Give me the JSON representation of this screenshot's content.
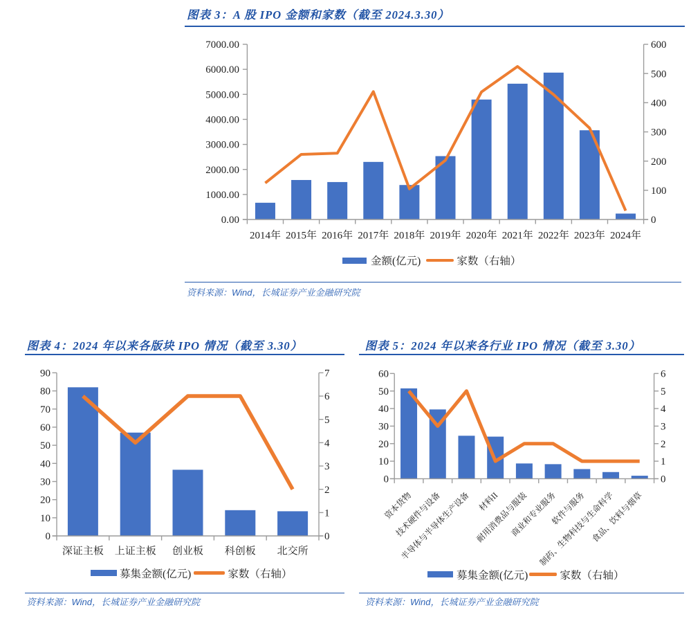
{
  "page": {
    "type": "research-report-figures",
    "background": "#ffffff"
  },
  "colors": {
    "bar_blue": "#4472C4",
    "line_orange": "#ED7D31",
    "title_blue": "#1C4FA3",
    "rule_blue": "#2458AC",
    "source_blue": "#2E63B5",
    "axis_gray": "#9C9C9C",
    "tick_label_dark": "#1F1F1F"
  },
  "figures": [
    {
      "id": "figure-3",
      "title": "图表 3：A 股 IPO 金额和家数（截至 2024.3.30）",
      "source": "资料来源：Wind，长城证券产业金融研究院",
      "legend": {
        "bar": "金额(亿元)",
        "line": "家数（右轴）"
      },
      "chart_data": {
        "type": "bar+line",
        "categories": [
          "2014年",
          "2015年",
          "2016年",
          "2017年",
          "2018年",
          "2019年",
          "2020年",
          "2021年",
          "2022年",
          "2023年",
          "2024年"
        ],
        "series": [
          {
            "name": "金额(亿元)",
            "type": "bar",
            "axis": "left",
            "values": [
              669,
              1578,
              1496,
              2301,
              1378,
              2532,
              4793,
              5426,
              5869,
              3565,
              236
            ]
          },
          {
            "name": "家数（右轴）",
            "type": "line",
            "axis": "right",
            "values": [
              125,
              223,
              227,
              438,
              105,
              203,
              437,
              524,
              428,
              313,
              30
            ]
          }
        ],
        "ylim_left": [
          0,
          7000
        ],
        "ylim_right": [
          0,
          600
        ],
        "yticks_left": [
          "7000.00",
          "6000.00",
          "5000.00",
          "4000.00",
          "3000.00",
          "2000.00",
          "1000.00",
          "0.00"
        ],
        "yticks_right": [
          "600",
          "500",
          "400",
          "300",
          "200",
          "100",
          "0"
        ],
        "grid": false,
        "legend_position": "bottom"
      }
    },
    {
      "id": "figure-4",
      "title": "图表 4：2024 年以来各版块 IPO 情况（截至 3.30）",
      "source": "资料来源：Wind，长城证券产业金融研究院",
      "legend": {
        "bar": "募集金额(亿元)",
        "line": "家数（右轴）"
      },
      "chart_data": {
        "type": "bar+line",
        "categories": [
          "深证主板",
          "上证主板",
          "创业板",
          "科创板",
          "北交所"
        ],
        "series": [
          {
            "name": "募集金额(亿元)",
            "type": "bar",
            "axis": "left",
            "values": [
              82,
              57,
              36.5,
              14.2,
              13.6
            ]
          },
          {
            "name": "家数（右轴）",
            "type": "line",
            "axis": "right",
            "values": [
              6,
              4,
              6,
              6,
              2
            ]
          }
        ],
        "ylim_left": [
          0,
          90
        ],
        "ylim_right": [
          0,
          7
        ],
        "yticks_left": [
          "90",
          "80",
          "70",
          "60",
          "50",
          "40",
          "30",
          "20",
          "10",
          "0"
        ],
        "yticks_right": [
          "7",
          "6",
          "5",
          "4",
          "3",
          "2",
          "1",
          "0"
        ],
        "grid": false,
        "legend_position": "bottom"
      }
    },
    {
      "id": "figure-5",
      "title": "图表 5：2024 年以来各行业 IPO 情况（截至 3.30）",
      "source": "资料来源：Wind，长城证券产业金融研究院",
      "legend": {
        "bar": "募集金额(亿元)",
        "line": "家数（右轴）"
      },
      "chart_data": {
        "type": "bar+line",
        "categories": [
          "资本货物",
          "技术硬件与设备",
          "半导体与半导体生产设备",
          "材料II",
          "耐用消费品与服装",
          "商业和专业服务",
          "软件与服务",
          "制药、生物科技与生命科学",
          "食品、饮料与烟草"
        ],
        "series": [
          {
            "name": "募集金额(亿元)",
            "type": "bar",
            "axis": "left",
            "values": [
              51.5,
              39.5,
              24.5,
              24,
              8.7,
              8.3,
              5.5,
              3.8,
              1.7
            ]
          },
          {
            "name": "家数（右轴）",
            "type": "line",
            "axis": "right",
            "values": [
              5,
              3,
              5,
              1,
              2,
              2,
              1,
              1,
              1
            ]
          }
        ],
        "ylim_left": [
          0,
          60
        ],
        "ylim_right": [
          0,
          6
        ],
        "yticks_left": [
          "60",
          "50",
          "40",
          "30",
          "20",
          "10",
          "0"
        ],
        "yticks_right": [
          "6",
          "5",
          "4",
          "3",
          "2",
          "1",
          "0"
        ],
        "grid": false,
        "legend_position": "bottom",
        "xlabel_rotation": 45
      }
    }
  ]
}
